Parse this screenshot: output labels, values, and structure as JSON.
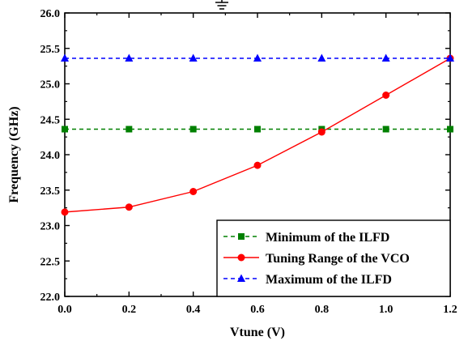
{
  "chart_data": {
    "type": "line",
    "xlabel": "Vtune (V)",
    "ylabel": "Frequency (GHz)",
    "xlim": [
      0.0,
      1.2
    ],
    "ylim": [
      22.0,
      26.0
    ],
    "x_ticks": [
      "0.0",
      "0.2",
      "0.4",
      "0.6",
      "0.8",
      "1.0",
      "1.2"
    ],
    "y_ticks": [
      "22.0",
      "22.5",
      "23.0",
      "23.5",
      "24.0",
      "24.5",
      "25.0",
      "25.5",
      "26.0"
    ],
    "x": [
      0.0,
      0.2,
      0.4,
      0.6,
      0.8,
      1.0,
      1.2
    ],
    "grid": false,
    "legend_position": "bottom-right",
    "series": [
      {
        "name": "Minimum of the ILFD",
        "values": [
          24.36,
          24.36,
          24.36,
          24.36,
          24.36,
          24.36,
          24.36
        ],
        "color": "#008000",
        "line_style": "dashed",
        "marker": "square"
      },
      {
        "name": "Tuning Range of the VCO",
        "values": [
          23.19,
          23.26,
          23.48,
          23.85,
          24.32,
          24.84,
          25.36
        ],
        "color": "#ff0000",
        "line_style": "solid",
        "marker": "circle"
      },
      {
        "name": "Maximum of the ILFD",
        "values": [
          25.36,
          25.36,
          25.36,
          25.36,
          25.36,
          25.36,
          25.36
        ],
        "color": "#0000ff",
        "line_style": "dashed",
        "marker": "triangle"
      }
    ]
  }
}
